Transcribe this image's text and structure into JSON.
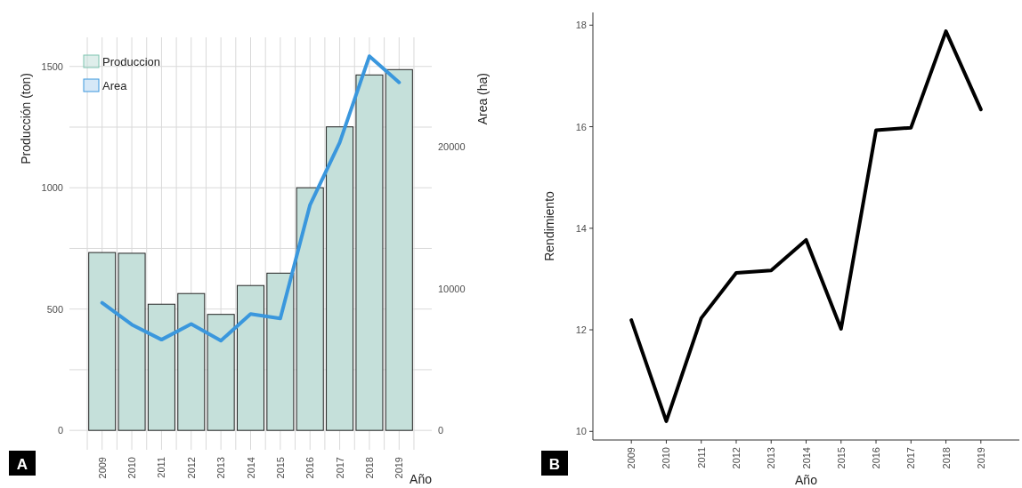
{
  "chart_data": [
    {
      "type": "bar",
      "categories": [
        "2009",
        "2010",
        "2011",
        "2012",
        "2013",
        "2014",
        "2015",
        "2016",
        "2017",
        "2018",
        "2019"
      ],
      "xlabel": "Año",
      "ylabel": "Producción (ton)",
      "y2label": "Area (ha)",
      "series": [
        {
          "name": "Produccion",
          "type": "bar",
          "color": "#c5e0da",
          "values": [
            733,
            730,
            520,
            564,
            478,
            597,
            648,
            1000,
            1251,
            1465,
            1487
          ]
        },
        {
          "name": "Area",
          "type": "line",
          "axis": "y2",
          "color": "#3a97dd",
          "values": [
            9000,
            7460,
            6400,
            7500,
            6330,
            8210,
            7900,
            15900,
            20300,
            26400,
            24550
          ]
        }
      ],
      "ylim": [
        -80,
        1620
      ],
      "yticks": [
        0,
        {
          "value": 250,
          "label": null
        },
        500,
        {
          "value": 750,
          "label": null
        },
        1000,
        {
          "value": 1250,
          "label": null
        },
        1500
      ],
      "y2lim": [
        -1370,
        27730
      ],
      "y2ticks": [
        0,
        10000,
        20000
      ],
      "grid": true,
      "legend": "top left",
      "annotations": [
        "A"
      ]
    },
    {
      "type": "line",
      "categories": [
        "2009",
        "2010",
        "2011",
        "2012",
        "2013",
        "2014",
        "2015",
        "2016",
        "2017",
        "2018",
        "2019"
      ],
      "xlabel": "Año",
      "ylabel": "Rendimiento",
      "series": [
        {
          "color": "#000000",
          "values": [
            12.19,
            10.2,
            12.23,
            13.12,
            13.17,
            13.77,
            12.02,
            15.93,
            15.98,
            17.88,
            16.34
          ]
        }
      ],
      "ylim": [
        9.83,
        18.25
      ],
      "yticks": [
        10,
        12,
        14,
        16,
        18
      ],
      "grid": false,
      "annotations": [
        "B"
      ]
    }
  ]
}
